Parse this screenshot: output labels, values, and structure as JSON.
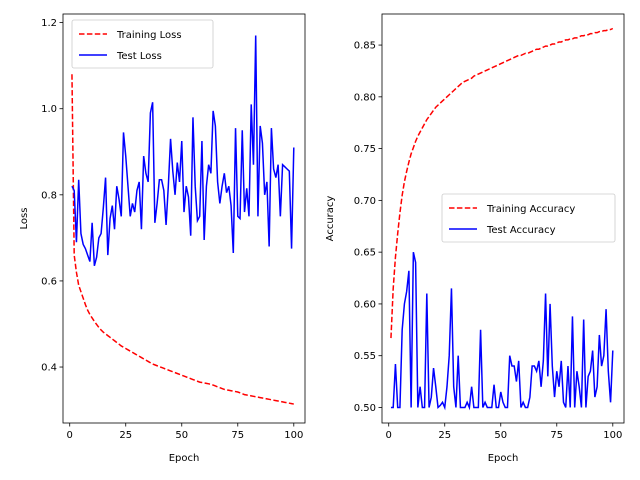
{
  "chart_data": [
    {
      "type": "line",
      "xlabel": "Epoch",
      "ylabel": "Loss",
      "xlim": [
        -3,
        105
      ],
      "ylim": [
        0.27,
        1.22
      ],
      "xticks": [
        0,
        25,
        50,
        75,
        100
      ],
      "yticks": [
        0.4,
        0.6,
        0.8,
        1.0,
        1.2
      ],
      "ytick_labels": [
        "0.4",
        "0.6",
        "0.8",
        "1.0",
        "1.2"
      ],
      "grid": false,
      "legend_position": "upper-left",
      "series": [
        {
          "name": "Training Loss",
          "color": "#ff0000",
          "style": "dashed",
          "x": [
            1,
            2,
            3,
            4,
            5,
            6,
            7,
            8,
            9,
            10,
            11,
            12,
            13,
            14,
            15,
            16,
            17,
            18,
            19,
            20,
            21,
            22,
            23,
            24,
            25,
            26,
            27,
            28,
            29,
            30,
            31,
            32,
            33,
            34,
            35,
            36,
            37,
            38,
            39,
            40,
            41,
            42,
            43,
            44,
            45,
            46,
            47,
            48,
            49,
            50,
            51,
            52,
            53,
            54,
            55,
            56,
            57,
            58,
            59,
            60,
            61,
            62,
            63,
            64,
            65,
            66,
            67,
            68,
            69,
            70,
            71,
            72,
            73,
            74,
            75,
            76,
            77,
            78,
            79,
            80,
            81,
            82,
            83,
            84,
            85,
            86,
            87,
            88,
            89,
            90,
            91,
            92,
            93,
            94,
            95,
            96,
            97,
            98,
            99,
            100
          ],
          "y": [
            1.08,
            0.66,
            0.62,
            0.59,
            0.575,
            0.56,
            0.545,
            0.532,
            0.522,
            0.514,
            0.506,
            0.499,
            0.492,
            0.486,
            0.481,
            0.477,
            0.473,
            0.469,
            0.465,
            0.461,
            0.457,
            0.453,
            0.449,
            0.446,
            0.443,
            0.44,
            0.437,
            0.434,
            0.431,
            0.428,
            0.425,
            0.422,
            0.419,
            0.416,
            0.413,
            0.41,
            0.407,
            0.405,
            0.403,
            0.401,
            0.399,
            0.397,
            0.395,
            0.393,
            0.391,
            0.389,
            0.387,
            0.385,
            0.383,
            0.381,
            0.379,
            0.377,
            0.375,
            0.373,
            0.371,
            0.369,
            0.367,
            0.365,
            0.364,
            0.363,
            0.362,
            0.361,
            0.36,
            0.358,
            0.356,
            0.354,
            0.352,
            0.35,
            0.348,
            0.347,
            0.346,
            0.345,
            0.344,
            0.343,
            0.342,
            0.34,
            0.338,
            0.336,
            0.335,
            0.334,
            0.333,
            0.332,
            0.331,
            0.33,
            0.329,
            0.328,
            0.327,
            0.326,
            0.325,
            0.324,
            0.323,
            0.322,
            0.321,
            0.32,
            0.319,
            0.318,
            0.317,
            0.316,
            0.315,
            0.314
          ]
        },
        {
          "name": "Test Loss",
          "color": "#0000ff",
          "style": "solid",
          "x": [
            1,
            2,
            3,
            4,
            5,
            6,
            7,
            8,
            9,
            10,
            11,
            12,
            13,
            14,
            15,
            16,
            17,
            18,
            19,
            20,
            21,
            22,
            23,
            24,
            25,
            26,
            27,
            28,
            29,
            30,
            31,
            32,
            33,
            34,
            35,
            36,
            37,
            38,
            39,
            40,
            41,
            42,
            43,
            44,
            45,
            46,
            47,
            48,
            49,
            50,
            51,
            52,
            53,
            54,
            55,
            56,
            57,
            58,
            59,
            60,
            61,
            62,
            63,
            64,
            65,
            66,
            67,
            68,
            69,
            70,
            71,
            72,
            73,
            74,
            75,
            76,
            77,
            78,
            79,
            80,
            81,
            82,
            83,
            84,
            85,
            86,
            87,
            88,
            89,
            90,
            91,
            92,
            93,
            94,
            95,
            96,
            97,
            98,
            99,
            100
          ],
          "y": [
            0.82,
            0.81,
            0.69,
            0.835,
            0.71,
            0.685,
            0.675,
            0.66,
            0.645,
            0.735,
            0.635,
            0.655,
            0.7,
            0.71,
            0.77,
            0.84,
            0.66,
            0.745,
            0.775,
            0.72,
            0.82,
            0.79,
            0.75,
            0.945,
            0.89,
            0.82,
            0.75,
            0.78,
            0.76,
            0.81,
            0.83,
            0.72,
            0.89,
            0.85,
            0.83,
            0.99,
            1.015,
            0.735,
            0.78,
            0.835,
            0.835,
            0.81,
            0.73,
            0.82,
            0.93,
            0.855,
            0.8,
            0.875,
            0.83,
            0.925,
            0.76,
            0.82,
            0.795,
            0.705,
            0.98,
            0.82,
            0.74,
            0.75,
            0.925,
            0.695,
            0.82,
            0.87,
            0.85,
            0.995,
            0.96,
            0.83,
            0.78,
            0.82,
            0.85,
            0.805,
            0.82,
            0.775,
            0.665,
            0.955,
            0.75,
            0.745,
            0.95,
            0.76,
            0.815,
            0.75,
            1.01,
            0.87,
            1.17,
            0.75,
            0.96,
            0.92,
            0.8,
            0.83,
            0.68,
            0.955,
            0.86,
            0.84,
            0.87,
            0.75,
            0.87,
            0.865,
            0.86,
            0.855,
            0.675,
            0.91
          ]
        }
      ]
    },
    {
      "type": "line",
      "xlabel": "Epoch",
      "ylabel": "Accuracy",
      "xlim": [
        -3,
        105
      ],
      "ylim": [
        0.485,
        0.88
      ],
      "xticks": [
        0,
        25,
        50,
        75,
        100
      ],
      "yticks": [
        0.5,
        0.55,
        0.6,
        0.65,
        0.7,
        0.75,
        0.8,
        0.85
      ],
      "ytick_labels": [
        "0.50",
        "0.55",
        "0.60",
        "0.65",
        "0.70",
        "0.75",
        "0.80",
        "0.85"
      ],
      "grid": false,
      "legend_position": "center-right",
      "series": [
        {
          "name": "Training Accuracy",
          "color": "#ff0000",
          "style": "dashed",
          "x": [
            1,
            2,
            3,
            4,
            5,
            6,
            7,
            8,
            9,
            10,
            11,
            12,
            13,
            14,
            15,
            16,
            17,
            18,
            19,
            20,
            21,
            22,
            23,
            24,
            25,
            26,
            27,
            28,
            29,
            30,
            31,
            32,
            33,
            34,
            35,
            36,
            37,
            38,
            39,
            40,
            41,
            42,
            43,
            44,
            45,
            46,
            47,
            48,
            49,
            50,
            51,
            52,
            53,
            54,
            55,
            56,
            57,
            58,
            59,
            60,
            61,
            62,
            63,
            64,
            65,
            66,
            67,
            68,
            69,
            70,
            71,
            72,
            73,
            74,
            75,
            76,
            77,
            78,
            79,
            80,
            81,
            82,
            83,
            84,
            85,
            86,
            87,
            88,
            89,
            90,
            91,
            92,
            93,
            94,
            95,
            96,
            97,
            98,
            99,
            100
          ],
          "y": [
            0.567,
            0.615,
            0.645,
            0.668,
            0.688,
            0.705,
            0.718,
            0.728,
            0.737,
            0.745,
            0.751,
            0.757,
            0.762,
            0.766,
            0.77,
            0.774,
            0.778,
            0.781,
            0.784,
            0.787,
            0.79,
            0.792,
            0.794,
            0.796,
            0.798,
            0.8,
            0.802,
            0.804,
            0.806,
            0.808,
            0.81,
            0.812,
            0.814,
            0.815,
            0.816,
            0.817,
            0.818,
            0.82,
            0.821,
            0.822,
            0.823,
            0.824,
            0.825,
            0.826,
            0.827,
            0.828,
            0.829,
            0.83,
            0.831,
            0.832,
            0.833,
            0.834,
            0.835,
            0.836,
            0.837,
            0.838,
            0.839,
            0.84,
            0.84,
            0.841,
            0.842,
            0.842,
            0.843,
            0.844,
            0.845,
            0.846,
            0.846,
            0.847,
            0.848,
            0.849,
            0.849,
            0.85,
            0.851,
            0.851,
            0.852,
            0.853,
            0.853,
            0.854,
            0.855,
            0.855,
            0.856,
            0.856,
            0.857,
            0.857,
            0.858,
            0.859,
            0.859,
            0.86,
            0.86,
            0.861,
            0.861,
            0.862,
            0.862,
            0.863,
            0.863,
            0.864,
            0.864,
            0.865,
            0.865,
            0.866
          ]
        },
        {
          "name": "Test Accuracy",
          "color": "#0000ff",
          "style": "solid",
          "x": [
            1,
            2,
            3,
            4,
            5,
            6,
            7,
            8,
            9,
            10,
            11,
            12,
            13,
            14,
            15,
            16,
            17,
            18,
            19,
            20,
            21,
            22,
            23,
            24,
            25,
            26,
            27,
            28,
            29,
            30,
            31,
            32,
            33,
            34,
            35,
            36,
            37,
            38,
            39,
            40,
            41,
            42,
            43,
            44,
            45,
            46,
            47,
            48,
            49,
            50,
            51,
            52,
            53,
            54,
            55,
            56,
            57,
            58,
            59,
            60,
            61,
            62,
            63,
            64,
            65,
            66,
            67,
            68,
            69,
            70,
            71,
            72,
            73,
            74,
            75,
            76,
            77,
            78,
            79,
            80,
            81,
            82,
            83,
            84,
            85,
            86,
            87,
            88,
            89,
            90,
            91,
            92,
            93,
            94,
            95,
            96,
            97,
            98,
            99,
            100
          ],
          "y": [
            0.5,
            0.5,
            0.542,
            0.5,
            0.5,
            0.575,
            0.6,
            0.612,
            0.632,
            0.5,
            0.65,
            0.64,
            0.5,
            0.52,
            0.5,
            0.5,
            0.61,
            0.5,
            0.51,
            0.538,
            0.52,
            0.5,
            0.502,
            0.505,
            0.5,
            0.52,
            0.55,
            0.615,
            0.52,
            0.5,
            0.55,
            0.5,
            0.5,
            0.5,
            0.505,
            0.5,
            0.52,
            0.5,
            0.5,
            0.5,
            0.575,
            0.5,
            0.505,
            0.5,
            0.5,
            0.5,
            0.522,
            0.5,
            0.5,
            0.515,
            0.505,
            0.5,
            0.5,
            0.55,
            0.54,
            0.54,
            0.525,
            0.545,
            0.5,
            0.505,
            0.5,
            0.5,
            0.51,
            0.54,
            0.54,
            0.535,
            0.545,
            0.52,
            0.545,
            0.61,
            0.53,
            0.6,
            0.54,
            0.51,
            0.535,
            0.52,
            0.545,
            0.505,
            0.5,
            0.54,
            0.5,
            0.588,
            0.5,
            0.535,
            0.52,
            0.5,
            0.585,
            0.5,
            0.53,
            0.535,
            0.555,
            0.51,
            0.52,
            0.57,
            0.54,
            0.55,
            0.595,
            0.535,
            0.505,
            0.555
          ]
        }
      ]
    }
  ]
}
